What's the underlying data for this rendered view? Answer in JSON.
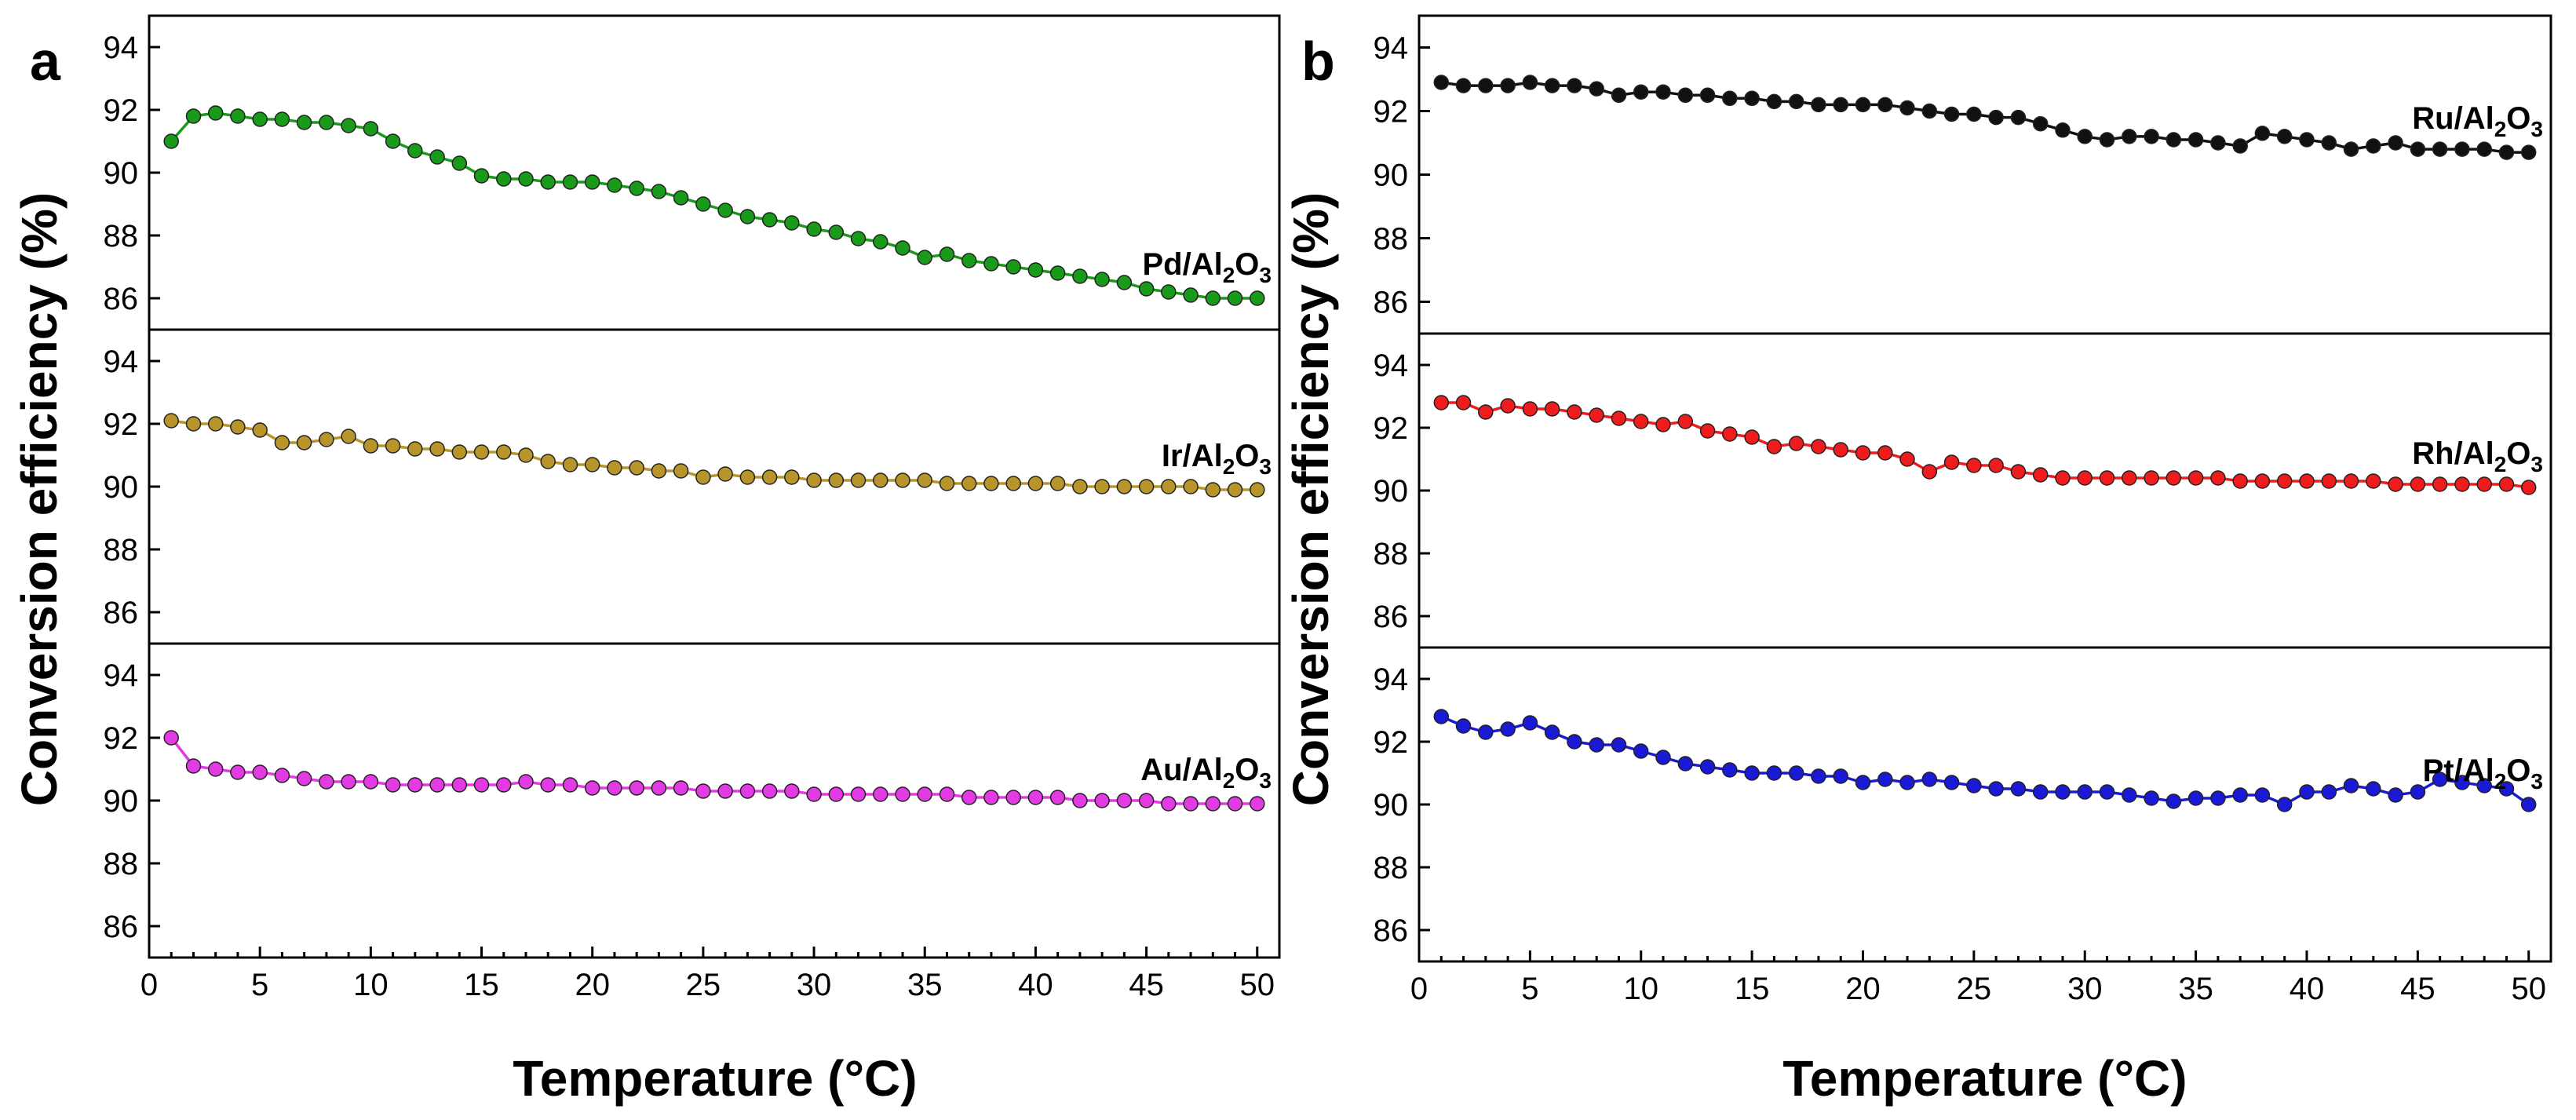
{
  "chart_data": [
    {
      "panel": "a",
      "type": "line",
      "xlabel": "Temperature (°C)",
      "ylabel": "Conversion efficiency (%)",
      "xlim": [
        0,
        51
      ],
      "x_ticks": [
        0,
        5,
        10,
        15,
        20,
        25,
        30,
        35,
        40,
        45,
        50
      ],
      "ylim": [
        85,
        95
      ],
      "y_ticks": [
        86,
        88,
        90,
        92,
        94
      ],
      "x": [
        1,
        2,
        3,
        4,
        5,
        6,
        7,
        8,
        9,
        10,
        11,
        12,
        13,
        14,
        15,
        16,
        17,
        18,
        19,
        20,
        21,
        22,
        23,
        24,
        25,
        26,
        27,
        28,
        29,
        30,
        31,
        32,
        33,
        34,
        35,
        36,
        37,
        38,
        39,
        40,
        41,
        42,
        43,
        44,
        45,
        46,
        47,
        48,
        49,
        50
      ],
      "series": [
        {
          "name": "Pd/Al2O3",
          "label_base": "Pd/Al",
          "label_sub1": "2",
          "label_mid": "O",
          "label_sub2": "3",
          "color": "#1a9a1a",
          "values": [
            91.0,
            91.8,
            91.9,
            91.8,
            91.7,
            91.7,
            91.6,
            91.6,
            91.5,
            91.4,
            91.0,
            90.7,
            90.5,
            90.3,
            89.9,
            89.8,
            89.8,
            89.7,
            89.7,
            89.7,
            89.6,
            89.5,
            89.4,
            89.2,
            89.0,
            88.8,
            88.6,
            88.5,
            88.4,
            88.2,
            88.1,
            87.9,
            87.8,
            87.6,
            87.3,
            87.4,
            87.2,
            87.1,
            87.0,
            86.9,
            86.8,
            86.7,
            86.6,
            86.5,
            86.3,
            86.2,
            86.1,
            86.0,
            86.0,
            86.0
          ]
        },
        {
          "name": "Ir/Al2O3",
          "label_base": "Ir/Al",
          "label_sub1": "2",
          "label_mid": "O",
          "label_sub2": "3",
          "color": "#b8952a",
          "values": [
            92.1,
            92.0,
            92.0,
            91.9,
            91.8,
            91.4,
            91.4,
            91.5,
            91.6,
            91.3,
            91.3,
            91.2,
            91.2,
            91.1,
            91.1,
            91.1,
            91.0,
            90.8,
            90.7,
            90.7,
            90.6,
            90.6,
            90.5,
            90.5,
            90.3,
            90.4,
            90.3,
            90.3,
            90.3,
            90.2,
            90.2,
            90.2,
            90.2,
            90.2,
            90.2,
            90.1,
            90.1,
            90.1,
            90.1,
            90.1,
            90.1,
            90.0,
            90.0,
            90.0,
            90.0,
            90.0,
            90.0,
            89.9,
            89.9,
            89.9
          ]
        },
        {
          "name": "Au/Al2O3",
          "label_base": "Au/Al",
          "label_sub1": "2",
          "label_mid": "O",
          "label_sub2": "3",
          "color": "#e33be3",
          "values": [
            92.0,
            91.1,
            91.0,
            90.9,
            90.9,
            90.8,
            90.7,
            90.6,
            90.6,
            90.6,
            90.5,
            90.5,
            90.5,
            90.5,
            90.5,
            90.5,
            90.6,
            90.5,
            90.5,
            90.4,
            90.4,
            90.4,
            90.4,
            90.4,
            90.3,
            90.3,
            90.3,
            90.3,
            90.3,
            90.2,
            90.2,
            90.2,
            90.2,
            90.2,
            90.2,
            90.2,
            90.1,
            90.1,
            90.1,
            90.1,
            90.1,
            90.0,
            90.0,
            90.0,
            90.0,
            89.9,
            89.9,
            89.9,
            89.9,
            89.9
          ]
        }
      ]
    },
    {
      "panel": "b",
      "type": "line",
      "xlabel": "Temperature (°C)",
      "ylabel": "Conversion efficiency (%)",
      "xlim": [
        0,
        51
      ],
      "x_ticks": [
        0,
        5,
        10,
        15,
        20,
        25,
        30,
        35,
        40,
        45,
        50
      ],
      "ylim": [
        85,
        95
      ],
      "y_ticks": [
        86,
        88,
        90,
        92,
        94
      ],
      "x": [
        1,
        2,
        3,
        4,
        5,
        6,
        7,
        8,
        9,
        10,
        11,
        12,
        13,
        14,
        15,
        16,
        17,
        18,
        19,
        20,
        21,
        22,
        23,
        24,
        25,
        26,
        27,
        28,
        29,
        30,
        31,
        32,
        33,
        34,
        35,
        36,
        37,
        38,
        39,
        40,
        41,
        42,
        43,
        44,
        45,
        46,
        47,
        48,
        49,
        50
      ],
      "series": [
        {
          "name": "Ru/Al2O3",
          "label_base": "Ru/Al",
          "label_sub1": "2",
          "label_mid": "O",
          "label_sub2": "3",
          "color": "#111111",
          "values": [
            92.9,
            92.8,
            92.8,
            92.8,
            92.9,
            92.8,
            92.8,
            92.7,
            92.5,
            92.6,
            92.6,
            92.5,
            92.5,
            92.4,
            92.4,
            92.3,
            92.3,
            92.2,
            92.2,
            92.2,
            92.2,
            92.1,
            92.0,
            91.9,
            91.9,
            91.8,
            91.8,
            91.6,
            91.4,
            91.2,
            91.1,
            91.2,
            91.2,
            91.1,
            91.1,
            91.0,
            90.9,
            91.3,
            91.2,
            91.1,
            91.0,
            90.8,
            90.9,
            91.0,
            90.8,
            90.8,
            90.8,
            90.8,
            90.7,
            90.7
          ]
        },
        {
          "name": "Rh/Al2O3",
          "label_base": "Rh/Al",
          "label_sub1": "2",
          "label_mid": "O",
          "label_sub2": "3",
          "color": "#ee1c1c",
          "values": [
            92.8,
            92.8,
            92.5,
            92.7,
            92.6,
            92.6,
            92.5,
            92.4,
            92.3,
            92.2,
            92.1,
            92.2,
            91.9,
            91.8,
            91.7,
            91.4,
            91.5,
            91.4,
            91.3,
            91.2,
            91.2,
            91.0,
            90.6,
            90.9,
            90.8,
            90.8,
            90.6,
            90.5,
            90.4,
            90.4,
            90.4,
            90.4,
            90.4,
            90.4,
            90.4,
            90.4,
            90.3,
            90.3,
            90.3,
            90.3,
            90.3,
            90.3,
            90.3,
            90.2,
            90.2,
            90.2,
            90.2,
            90.2,
            90.2,
            90.1
          ]
        },
        {
          "name": "Pt/Al2O3",
          "label_base": "Pt/Al",
          "label_sub1": "2",
          "label_mid": "O",
          "label_sub2": "3",
          "color": "#1a1ad6",
          "values": [
            92.8,
            92.5,
            92.3,
            92.4,
            92.6,
            92.3,
            92.0,
            91.9,
            91.9,
            91.7,
            91.5,
            91.3,
            91.2,
            91.1,
            91.0,
            91.0,
            91.0,
            90.9,
            90.9,
            90.7,
            90.8,
            90.7,
            90.8,
            90.7,
            90.6,
            90.5,
            90.5,
            90.4,
            90.4,
            90.4,
            90.4,
            90.3,
            90.2,
            90.1,
            90.2,
            90.2,
            90.3,
            90.3,
            90.0,
            90.4,
            90.4,
            90.6,
            90.5,
            90.3,
            90.4,
            90.8,
            90.7,
            90.6,
            90.5,
            90.0
          ]
        }
      ]
    }
  ]
}
